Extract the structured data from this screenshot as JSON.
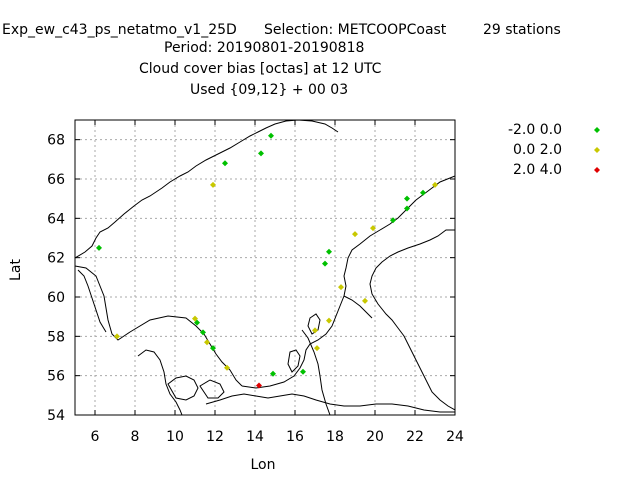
{
  "header": {
    "line1a": "Exp_ew_c43_ps_netatmo_v1_25D",
    "line1b": "Selection: METCOOPCoast",
    "line1c": "29 stations",
    "line2": "Period: 20190801-20190818",
    "line3": "Cloud cover bias [octas] at  12 UTC",
    "line4": "Used {09,12} + 00 03"
  },
  "chart_data": {
    "type": "scatter",
    "title": "Cloud cover bias [octas] at  12 UTC",
    "xlabel": "Lon",
    "ylabel": "Lat",
    "xlim": [
      5,
      24
    ],
    "ylim": [
      54,
      69
    ],
    "x_ticks": [
      6,
      8,
      10,
      12,
      14,
      16,
      18,
      20,
      22,
      24
    ],
    "y_ticks": [
      54,
      56,
      58,
      60,
      62,
      64,
      66,
      68
    ],
    "grid": true,
    "legend_position": "top-right, outside plot",
    "series": [
      {
        "name": "-2.0 0.0",
        "color": "#00c000",
        "points": [
          {
            "lon": 14.8,
            "lat": 68.2
          },
          {
            "lon": 14.3,
            "lat": 67.3
          },
          {
            "lon": 12.5,
            "lat": 66.8
          },
          {
            "lon": 22.4,
            "lat": 65.3
          },
          {
            "lon": 21.6,
            "lat": 65.0
          },
          {
            "lon": 21.6,
            "lat": 64.5
          },
          {
            "lon": 20.9,
            "lat": 63.9
          },
          {
            "lon": 6.2,
            "lat": 62.5
          },
          {
            "lon": 17.7,
            "lat": 62.3
          },
          {
            "lon": 17.5,
            "lat": 61.7
          },
          {
            "lon": 11.1,
            "lat": 58.7
          },
          {
            "lon": 11.4,
            "lat": 58.2
          },
          {
            "lon": 11.9,
            "lat": 57.4
          },
          {
            "lon": 16.4,
            "lat": 56.2
          },
          {
            "lon": 14.9,
            "lat": 56.1
          }
        ]
      },
      {
        "name": "0.0 2.0",
        "color": "#c8c800",
        "points": [
          {
            "lon": 23.0,
            "lat": 65.7
          },
          {
            "lon": 11.9,
            "lat": 65.7
          },
          {
            "lon": 19.9,
            "lat": 63.5
          },
          {
            "lon": 19.0,
            "lat": 63.2
          },
          {
            "lon": 18.3,
            "lat": 60.5
          },
          {
            "lon": 19.5,
            "lat": 59.8
          },
          {
            "lon": 11.0,
            "lat": 58.9
          },
          {
            "lon": 17.7,
            "lat": 58.8
          },
          {
            "lon": 17.0,
            "lat": 58.3
          },
          {
            "lon": 7.1,
            "lat": 58.0
          },
          {
            "lon": 11.6,
            "lat": 57.7
          },
          {
            "lon": 17.1,
            "lat": 57.4
          },
          {
            "lon": 12.6,
            "lat": 56.4
          }
        ]
      },
      {
        "name": "2.0 4.0",
        "color": "#e00000",
        "points": [
          {
            "lon": 14.2,
            "lat": 55.5
          }
        ]
      }
    ]
  }
}
